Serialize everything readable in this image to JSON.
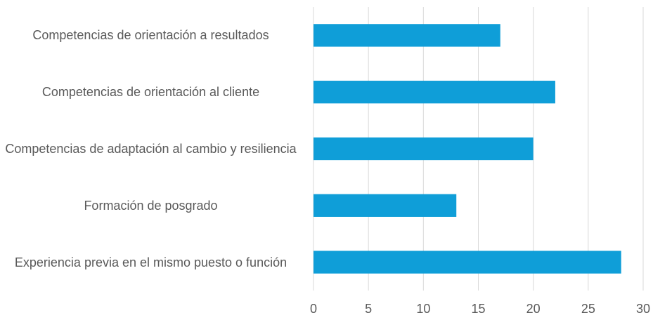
{
  "chart_data": {
    "type": "bar",
    "orientation": "horizontal",
    "categories": [
      "Competencias de orientación a resultados",
      "Competencias de orientación al cliente",
      "Competencias de adaptación al cambio y resiliencia",
      "Formación de posgrado",
      "Experiencia previa en el mismo puesto o función"
    ],
    "values": [
      17,
      22,
      20,
      13,
      28
    ],
    "color": "#0f9ed8",
    "xlim": [
      0,
      30
    ],
    "xticks": [
      0,
      5,
      10,
      15,
      20,
      25,
      30
    ],
    "grid": true
  }
}
